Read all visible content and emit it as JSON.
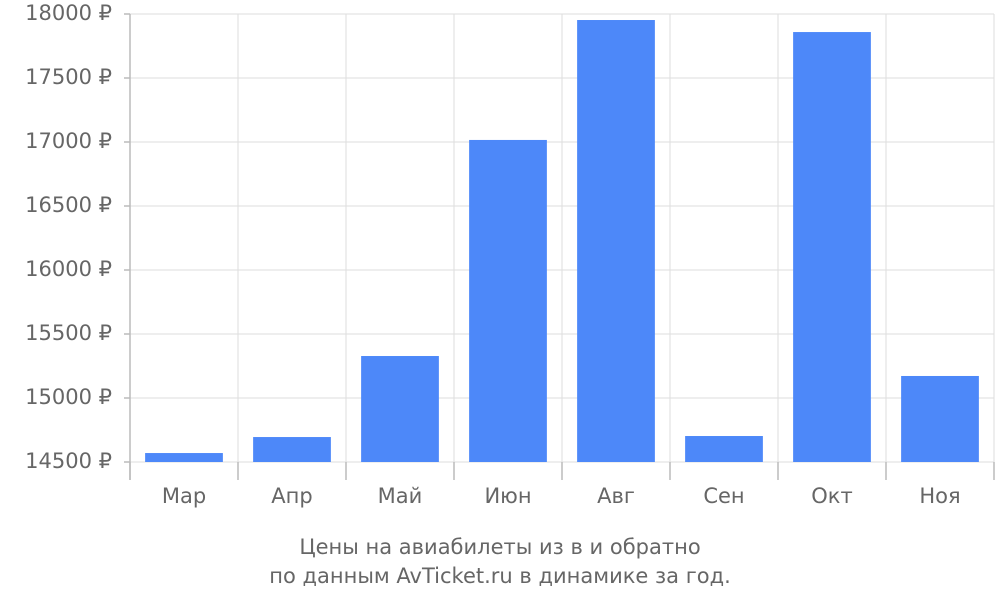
{
  "chart_data": {
    "type": "bar",
    "title": "Цены на авиабилеты из  в  и обратно",
    "subtitle": "по данным AvTicket.ru в динамике за год.",
    "categories": [
      "Мар",
      "Апр",
      "Май",
      "Июн",
      "Авг",
      "Сен",
      "Окт",
      "Ноя"
    ],
    "values": [
      14570,
      14695,
      15328,
      17016,
      17953,
      14703,
      17859,
      15172
    ],
    "color": "#4d88f9",
    "ylim": [
      14500,
      18000
    ],
    "yticks": [
      {
        "value": 14500,
        "label": "14500 ₽"
      },
      {
        "value": 15000,
        "label": "15000 ₽"
      },
      {
        "value": 15500,
        "label": "15500 ₽"
      },
      {
        "value": 16000,
        "label": "16000 ₽"
      },
      {
        "value": 16500,
        "label": "16500 ₽"
      },
      {
        "value": 17000,
        "label": "17000 ₽"
      },
      {
        "value": 17500,
        "label": "17500 ₽"
      },
      {
        "value": 18000,
        "label": "18000 ₽"
      }
    ],
    "grid": true
  }
}
